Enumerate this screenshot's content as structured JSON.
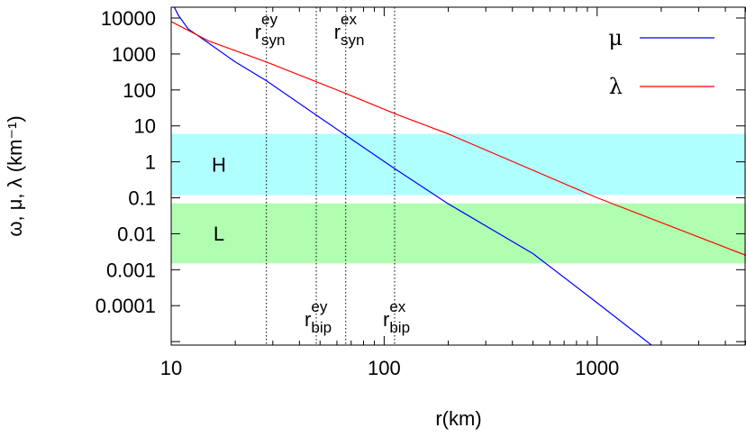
{
  "chart_data": {
    "type": "line",
    "title": "",
    "xlabel": "r(km)",
    "ylabel": "ω, μ, λ (km⁻¹)",
    "xscale": "log",
    "yscale": "log",
    "xlim": [
      10,
      5000
    ],
    "ylim": [
      8e-06,
      20000
    ],
    "x_ticks": [
      10,
      100,
      1000
    ],
    "y_ticks": [
      10000,
      1000,
      100,
      10,
      1,
      0.1,
      0.01,
      0.001,
      0.0001
    ],
    "grid": false,
    "legend": {
      "position": "top-right"
    },
    "series": [
      {
        "name": "μ",
        "color": "#0000ff",
        "x": [
          10,
          10.8,
          12,
          15,
          20,
          28,
          48,
          66,
          112,
          200,
          500,
          1000,
          1800
        ],
        "y": [
          30000,
          12000,
          5000,
          2000,
          600,
          180,
          20,
          5.5,
          0.65,
          0.068,
          0.0028,
          0.00012,
          8e-06
        ]
      },
      {
        "name": "λ",
        "color": "#ff0000",
        "x": [
          10,
          15,
          28,
          66,
          112,
          200,
          1000,
          5000
        ],
        "y": [
          8000,
          2300,
          600,
          80,
          22,
          6,
          0.1,
          0.0025
        ]
      }
    ],
    "bands": [
      {
        "label": "H",
        "color": "#b0ffff",
        "y_range": [
          0.12,
          6
        ]
      },
      {
        "label": "L",
        "color": "#b0ffb0",
        "y_range": [
          0.0015,
          0.07
        ]
      }
    ],
    "markers": [
      {
        "base": "r",
        "sub": "syn",
        "sup": "ey",
        "x": 28,
        "label_position": "top"
      },
      {
        "base": "r",
        "sub": "bip",
        "sup": "ey",
        "x": 48,
        "label_position": "bottom"
      },
      {
        "base": "r",
        "sub": "syn",
        "sup": "ex",
        "x": 66,
        "label_position": "top"
      },
      {
        "base": "r",
        "sub": "bip",
        "sup": "ex",
        "x": 112,
        "label_position": "bottom"
      }
    ]
  }
}
